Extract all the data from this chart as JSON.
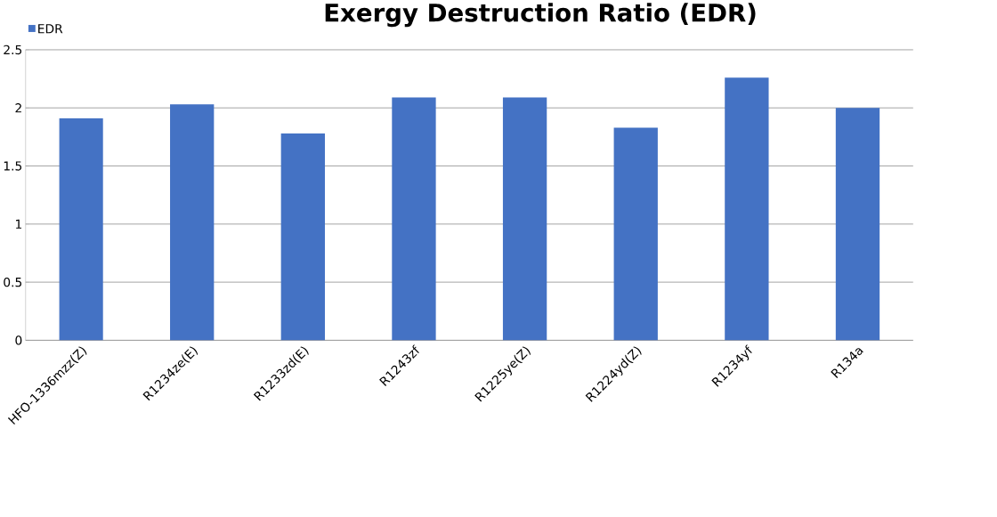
{
  "chart_data": {
    "type": "bar",
    "title": "Exergy Destruction Ratio (EDR)",
    "categories": [
      "HFO-1336mzz(Z)",
      "R1234ze(E)",
      "R1233zd(E)",
      "R1243zf",
      "R1225ye(Z)",
      "R1224yd(Z)",
      "R1234yf",
      "R134a"
    ],
    "series": [
      {
        "name": "EDR",
        "color": "#4472c4",
        "values": [
          1.91,
          2.03,
          1.78,
          2.09,
          2.09,
          1.83,
          2.26,
          2.0
        ]
      }
    ],
    "ylim": [
      0,
      2.5
    ],
    "yticks": [
      0,
      0.5,
      1,
      1.5,
      2,
      2.5
    ],
    "grid": "y",
    "legend": "top left"
  }
}
